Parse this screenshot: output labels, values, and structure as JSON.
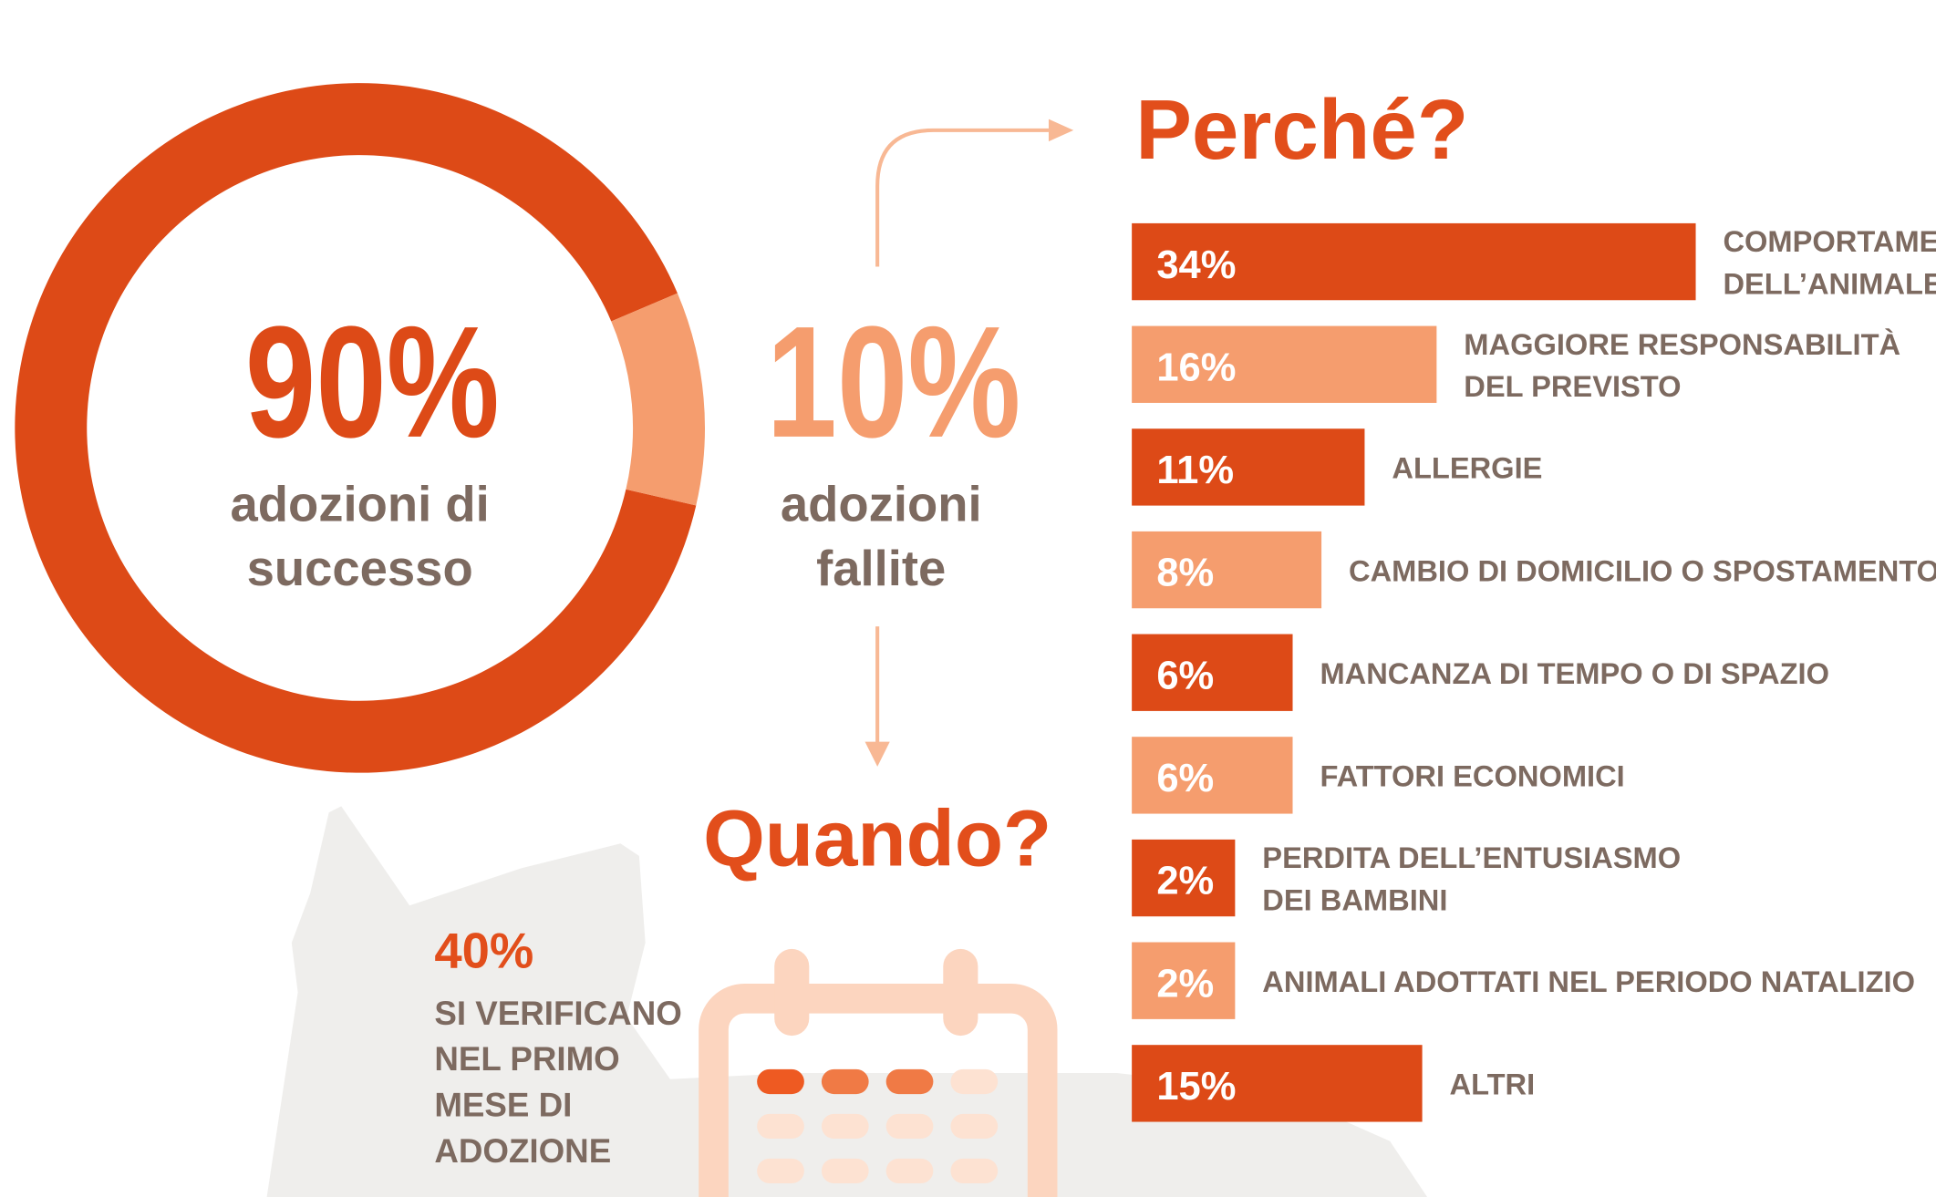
{
  "chart_data": [
    {
      "type": "pie",
      "categories": [
        "adozioni di\nsuccesso",
        "adozioni\nfallite"
      ],
      "values": [
        90,
        10
      ],
      "value_labels": [
        "90%",
        "10%"
      ],
      "colors": [
        "#dd4a17",
        "#f59d6e"
      ]
    },
    {
      "type": "bar",
      "orientation": "horizontal",
      "title": "Perché?",
      "categories": [
        "COMPORTAMENTO\nDELL’ANIMALE",
        "MAGGIORE RESPONSABILITÀ\nDEL PREVISTO",
        "ALLERGIE",
        "CAMBIO DI DOMICILIO O SPOSTAMENTO",
        "MANCANZA DI TEMPO O DI SPAZIO",
        "FATTORI ECONOMICI",
        "PERDITA DELL’ENTUSIASMO\nDEI BAMBINI",
        "ANIMALI ADOTTATI NEL PERIODO NATALIZIO",
        "ALTRI"
      ],
      "values": [
        34,
        16,
        11,
        8,
        6,
        6,
        2,
        2,
        15
      ],
      "value_labels": [
        "34%",
        "16%",
        "11%",
        "8%",
        "6%",
        "6%",
        "2%",
        "2%",
        "15%"
      ],
      "colors": [
        "#dd4a17",
        "#f59d6e",
        "#dd4a17",
        "#f59d6e",
        "#dd4a17",
        "#f59d6e",
        "#dd4a17",
        "#f59d6e",
        "#dd4a17"
      ]
    }
  ],
  "quando": {
    "title": "Quando?",
    "stat": "40%",
    "text": "SI VERIFICANO\nNEL PRIMO\nMESE DI\nADOZIONE"
  }
}
